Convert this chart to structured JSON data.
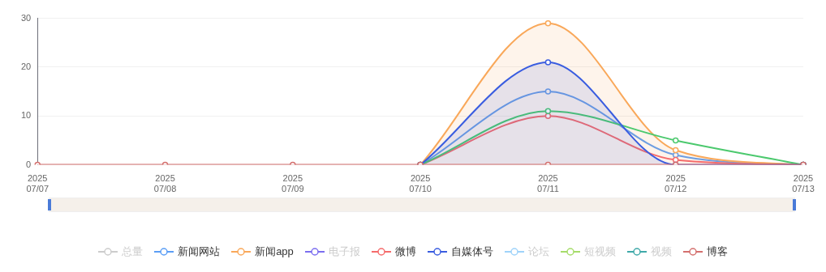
{
  "chart_data": {
    "type": "line",
    "categories": [
      "2025\n07/07",
      "2025\n07/08",
      "2025\n07/09",
      "2025\n07/10",
      "2025\n07/11",
      "2025\n07/12",
      "2025\n07/13"
    ],
    "ylim": [
      0,
      30
    ],
    "yticks": [
      0,
      10,
      20,
      30
    ],
    "grid": "y",
    "legend": "bottom",
    "marker": "circle",
    "series": [
      {
        "name": "总量",
        "color": "#cccccc",
        "values": [
          null,
          null,
          null,
          null,
          null,
          null,
          null
        ]
      },
      {
        "name": "新闻网站",
        "color": "#5b9ef5",
        "values": [
          null,
          null,
          null,
          0,
          15,
          2,
          0
        ]
      },
      {
        "name": "新闻app",
        "type": "area",
        "color": "#f9a85a",
        "values": [
          null,
          null,
          null,
          0,
          29,
          3,
          0
        ]
      },
      {
        "name": "电子报",
        "color": "#7b6ef0",
        "values": [
          null,
          null,
          null,
          null,
          null,
          null,
          null
        ]
      },
      {
        "name": "微博",
        "color": "#f56b6b",
        "values": [
          null,
          null,
          null,
          0,
          10,
          1,
          0
        ]
      },
      {
        "color": "#4cc96e",
        "values": [
          null,
          null,
          null,
          0,
          11,
          5,
          0
        ]
      },
      {
        "name": "自媒体号",
        "type": "area",
        "color": "#3a5de0",
        "values": [
          null,
          null,
          null,
          0,
          21,
          0,
          0
        ]
      },
      {
        "name": "论坛",
        "color": "#9fd3fa",
        "values": [
          null,
          null,
          null,
          null,
          null,
          null,
          null
        ]
      },
      {
        "name": "短视频",
        "color": "#a6dc6a",
        "values": [
          null,
          null,
          null,
          null,
          null,
          null,
          null
        ]
      },
      {
        "name": "视频",
        "color": "#3fa9a9",
        "values": [
          null,
          null,
          null,
          null,
          null,
          null,
          null
        ]
      },
      {
        "name": "博客",
        "color": "#d4706e",
        "values": [
          0,
          0,
          0,
          0,
          0,
          0,
          0
        ]
      }
    ]
  }
}
